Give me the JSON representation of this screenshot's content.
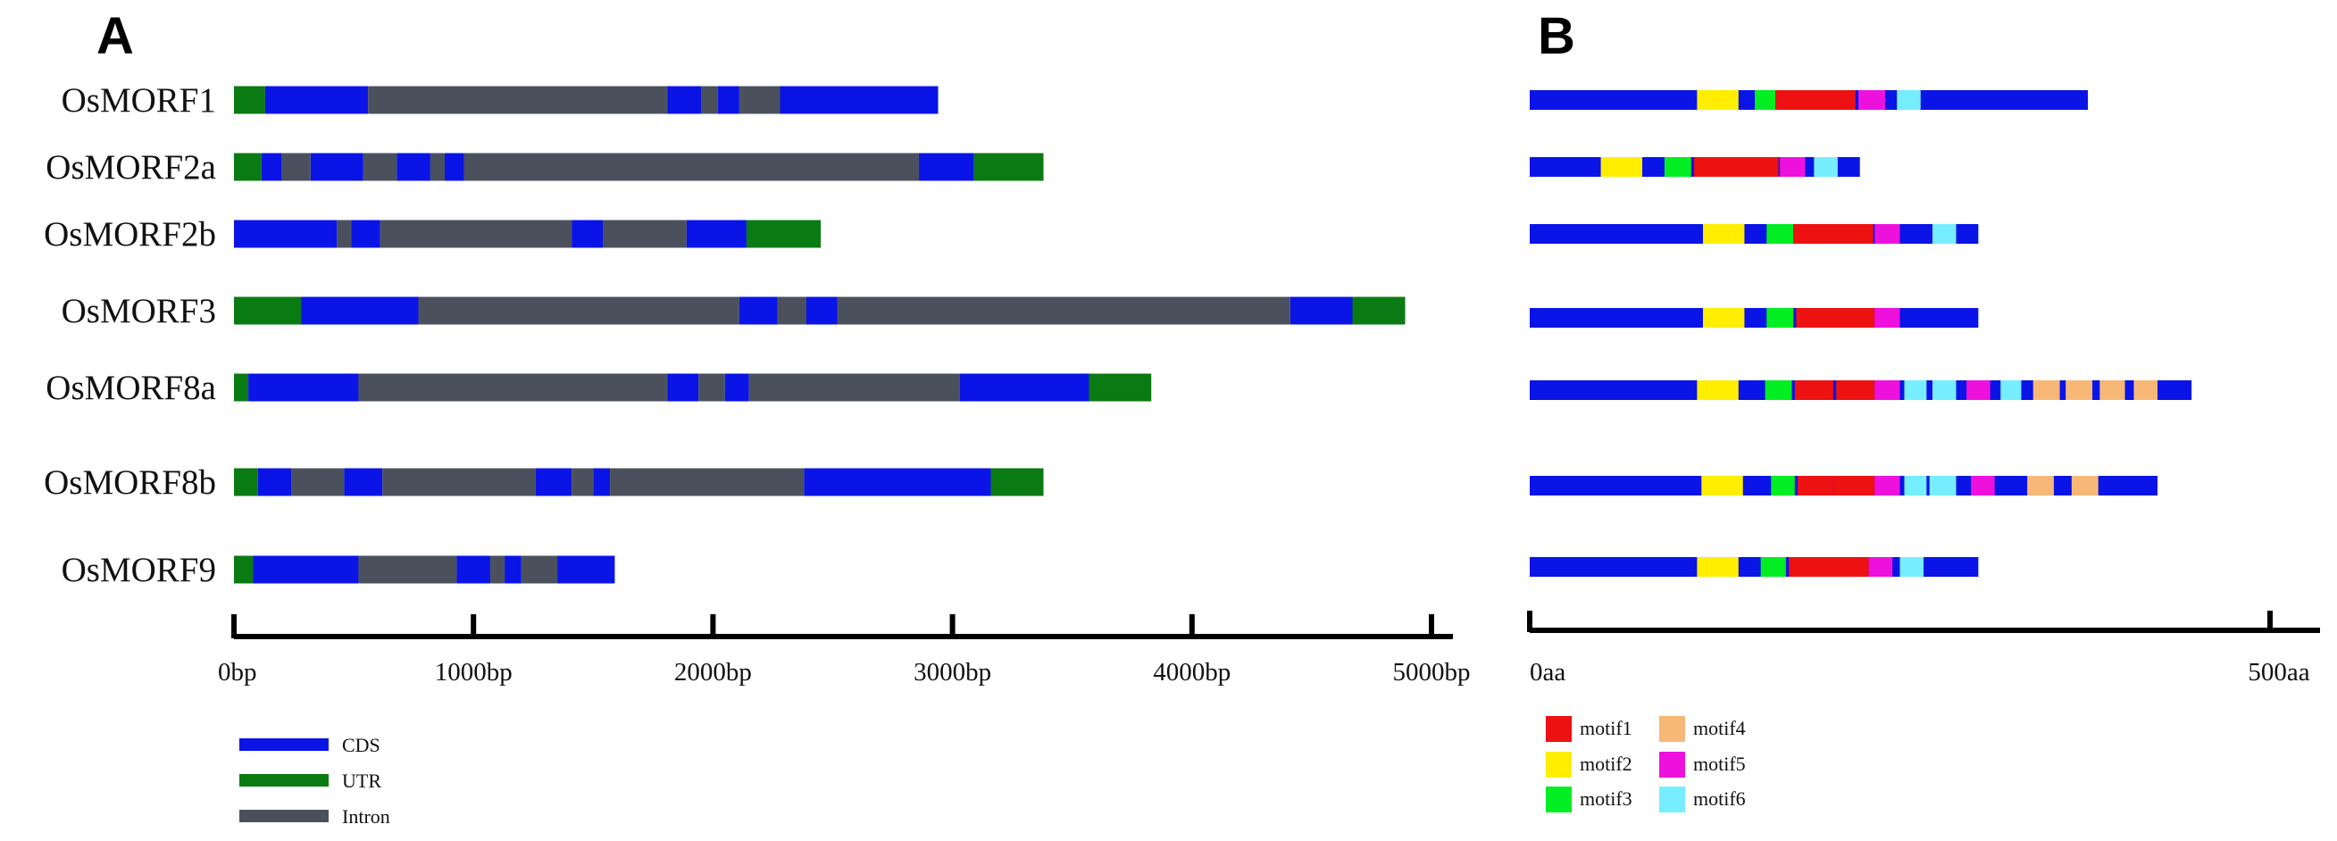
{
  "chart_data": [
    {
      "type": "gene_structure",
      "panel": "A",
      "unit": "bp",
      "xlim": [
        0,
        5000
      ],
      "ticks": [
        0,
        1000,
        2000,
        3000,
        4000,
        5000
      ],
      "tick_labels": [
        "0bp",
        "1000bp",
        "2000bp",
        "3000bp",
        "4000bp",
        "5000bp"
      ],
      "genes": [
        {
          "name": "OsMORF1",
          "segments": [
            {
              "type": "UTR",
              "start": 0,
              "end": 130
            },
            {
              "type": "CDS",
              "start": 130,
              "end": 560
            },
            {
              "type": "Intron",
              "start": 560,
              "end": 1810
            },
            {
              "type": "CDS",
              "start": 1810,
              "end": 1950
            },
            {
              "type": "Intron",
              "start": 1950,
              "end": 2020
            },
            {
              "type": "CDS",
              "start": 2020,
              "end": 2110
            },
            {
              "type": "Intron",
              "start": 2110,
              "end": 2280
            },
            {
              "type": "CDS",
              "start": 2280,
              "end": 2940
            }
          ]
        },
        {
          "name": "OsMORF2a",
          "segments": [
            {
              "type": "UTR",
              "start": 0,
              "end": 115
            },
            {
              "type": "CDS",
              "start": 115,
              "end": 200
            },
            {
              "type": "Intron",
              "start": 200,
              "end": 320
            },
            {
              "type": "CDS",
              "start": 320,
              "end": 540
            },
            {
              "type": "Intron",
              "start": 540,
              "end": 680
            },
            {
              "type": "CDS",
              "start": 680,
              "end": 820
            },
            {
              "type": "Intron",
              "start": 820,
              "end": 880
            },
            {
              "type": "CDS",
              "start": 880,
              "end": 960
            },
            {
              "type": "Intron",
              "start": 960,
              "end": 2860
            },
            {
              "type": "CDS",
              "start": 2860,
              "end": 3090
            },
            {
              "type": "UTR",
              "start": 3090,
              "end": 3380
            }
          ]
        },
        {
          "name": "OsMORF2b",
          "segments": [
            {
              "type": "CDS",
              "start": 0,
              "end": 430
            },
            {
              "type": "Intron",
              "start": 430,
              "end": 490
            },
            {
              "type": "CDS",
              "start": 490,
              "end": 610
            },
            {
              "type": "Intron",
              "start": 610,
              "end": 1410
            },
            {
              "type": "CDS",
              "start": 1410,
              "end": 1540
            },
            {
              "type": "Intron",
              "start": 1540,
              "end": 1890
            },
            {
              "type": "CDS",
              "start": 1890,
              "end": 2140
            },
            {
              "type": "UTR",
              "start": 2140,
              "end": 2450
            }
          ]
        },
        {
          "name": "OsMORF3",
          "segments": [
            {
              "type": "UTR",
              "start": 0,
              "end": 280
            },
            {
              "type": "CDS",
              "start": 280,
              "end": 770
            },
            {
              "type": "Intron",
              "start": 770,
              "end": 2110
            },
            {
              "type": "CDS",
              "start": 2110,
              "end": 2270
            },
            {
              "type": "Intron",
              "start": 2270,
              "end": 2390
            },
            {
              "type": "CDS",
              "start": 2390,
              "end": 2520
            },
            {
              "type": "Intron",
              "start": 2520,
              "end": 4410
            },
            {
              "type": "CDS",
              "start": 4410,
              "end": 4670
            },
            {
              "type": "UTR",
              "start": 4670,
              "end": 4890
            }
          ]
        },
        {
          "name": "OsMORF8a",
          "segments": [
            {
              "type": "UTR",
              "start": 0,
              "end": 60
            },
            {
              "type": "CDS",
              "start": 60,
              "end": 520
            },
            {
              "type": "Intron",
              "start": 520,
              "end": 1810
            },
            {
              "type": "CDS",
              "start": 1810,
              "end": 1940
            },
            {
              "type": "Intron",
              "start": 1940,
              "end": 2050
            },
            {
              "type": "CDS",
              "start": 2050,
              "end": 2150
            },
            {
              "type": "Intron",
              "start": 2150,
              "end": 3030
            },
            {
              "type": "CDS",
              "start": 3030,
              "end": 3570
            },
            {
              "type": "UTR",
              "start": 3570,
              "end": 3830
            }
          ]
        },
        {
          "name": "OsMORF8b",
          "segments": [
            {
              "type": "UTR",
              "start": 0,
              "end": 100
            },
            {
              "type": "CDS",
              "start": 100,
              "end": 240
            },
            {
              "type": "Intron",
              "start": 240,
              "end": 460
            },
            {
              "type": "CDS",
              "start": 460,
              "end": 620
            },
            {
              "type": "Intron",
              "start": 620,
              "end": 1260
            },
            {
              "type": "CDS",
              "start": 1260,
              "end": 1410
            },
            {
              "type": "Intron",
              "start": 1410,
              "end": 1500
            },
            {
              "type": "CDS",
              "start": 1500,
              "end": 1570
            },
            {
              "type": "Intron",
              "start": 1570,
              "end": 2380
            },
            {
              "type": "CDS",
              "start": 2380,
              "end": 3160
            },
            {
              "type": "UTR",
              "start": 3160,
              "end": 3380
            }
          ]
        },
        {
          "name": "OsMORF9",
          "segments": [
            {
              "type": "UTR",
              "start": 0,
              "end": 80
            },
            {
              "type": "CDS",
              "start": 80,
              "end": 520
            },
            {
              "type": "Intron",
              "start": 520,
              "end": 930
            },
            {
              "type": "CDS",
              "start": 930,
              "end": 1070
            },
            {
              "type": "Intron",
              "start": 1070,
              "end": 1130
            },
            {
              "type": "CDS",
              "start": 1130,
              "end": 1200
            },
            {
              "type": "Intron",
              "start": 1200,
              "end": 1350
            },
            {
              "type": "CDS",
              "start": 1350,
              "end": 1590
            }
          ]
        }
      ],
      "legend": [
        {
          "type": "CDS",
          "label": "CDS",
          "color": "#0a14e6"
        },
        {
          "type": "UTR",
          "label": "UTR",
          "color": "#0a7a12"
        },
        {
          "type": "Intron",
          "label": "Intron",
          "color": "#4a515d"
        }
      ]
    },
    {
      "type": "motif_structure",
      "panel": "B",
      "unit": "aa",
      "xlim": [
        0,
        500
      ],
      "ticks": [
        0,
        500
      ],
      "tick_labels": [
        "0aa",
        "500aa"
      ],
      "proteins": [
        {
          "name": "OsMORF1",
          "length": 377,
          "motifs": [
            {
              "motif": "motif2",
              "start": 113,
              "end": 141
            },
            {
              "motif": "motif3",
              "start": 152,
              "end": 166
            },
            {
              "motif": "motif1",
              "start": 166,
              "end": 220
            },
            {
              "motif": "motif5",
              "start": 222,
              "end": 240
            },
            {
              "motif": "motif6",
              "start": 248,
              "end": 264
            }
          ]
        },
        {
          "name": "OsMORF2a",
          "length": 223,
          "motifs": [
            {
              "motif": "motif2",
              "start": 48,
              "end": 76
            },
            {
              "motif": "motif3",
              "start": 91,
              "end": 109
            },
            {
              "motif": "motif1",
              "start": 111,
              "end": 168
            },
            {
              "motif": "motif5",
              "start": 169,
              "end": 186
            },
            {
              "motif": "motif6",
              "start": 192,
              "end": 208
            }
          ]
        },
        {
          "name": "OsMORF2b",
          "length": 303,
          "motifs": [
            {
              "motif": "motif2",
              "start": 117,
              "end": 145
            },
            {
              "motif": "motif3",
              "start": 160,
              "end": 178
            },
            {
              "motif": "motif1",
              "start": 178,
              "end": 232
            },
            {
              "motif": "motif5",
              "start": 233,
              "end": 250
            },
            {
              "motif": "motif6",
              "start": 272,
              "end": 288
            }
          ]
        },
        {
          "name": "OsMORF3",
          "length": 303,
          "motifs": [
            {
              "motif": "motif2",
              "start": 117,
              "end": 145
            },
            {
              "motif": "motif3",
              "start": 160,
              "end": 178
            },
            {
              "motif": "motif1",
              "start": 180,
              "end": 233
            },
            {
              "motif": "motif5",
              "start": 233,
              "end": 250
            }
          ]
        },
        {
          "name": "OsMORF8a",
          "length": 447,
          "motifs": [
            {
              "motif": "motif2",
              "start": 113,
              "end": 141
            },
            {
              "motif": "motif3",
              "start": 159,
              "end": 177
            },
            {
              "motif": "motif1",
              "start": 179,
              "end": 205
            },
            {
              "motif": "motif1",
              "start": 207,
              "end": 233
            },
            {
              "motif": "motif5",
              "start": 233,
              "end": 250
            },
            {
              "motif": "motif6",
              "start": 253,
              "end": 268
            },
            {
              "motif": "motif6",
              "start": 272,
              "end": 288
            },
            {
              "motif": "motif5",
              "start": 295,
              "end": 311
            },
            {
              "motif": "motif6",
              "start": 318,
              "end": 332
            },
            {
              "motif": "motif4",
              "start": 340,
              "end": 358
            },
            {
              "motif": "motif4",
              "start": 362,
              "end": 380
            },
            {
              "motif": "motif4",
              "start": 385,
              "end": 402
            },
            {
              "motif": "motif4",
              "start": 408,
              "end": 424
            }
          ]
        },
        {
          "name": "OsMORF8b",
          "length": 424,
          "motifs": [
            {
              "motif": "motif2",
              "start": 116,
              "end": 144
            },
            {
              "motif": "motif3",
              "start": 163,
              "end": 179
            },
            {
              "motif": "motif1",
              "start": 181,
              "end": 205
            },
            {
              "motif": "motif1",
              "start": 205,
              "end": 233
            },
            {
              "motif": "motif5",
              "start": 233,
              "end": 250
            },
            {
              "motif": "motif6",
              "start": 253,
              "end": 268
            },
            {
              "motif": "motif6",
              "start": 270,
              "end": 288
            },
            {
              "motif": "motif5",
              "start": 298,
              "end": 314
            },
            {
              "motif": "motif4",
              "start": 336,
              "end": 354
            },
            {
              "motif": "motif4",
              "start": 366,
              "end": 384
            }
          ]
        },
        {
          "name": "OsMORF9",
          "length": 303,
          "motifs": [
            {
              "motif": "motif2",
              "start": 113,
              "end": 141
            },
            {
              "motif": "motif3",
              "start": 156,
              "end": 173
            },
            {
              "motif": "motif1",
              "start": 175,
              "end": 229
            },
            {
              "motif": "motif5",
              "start": 229,
              "end": 245
            },
            {
              "motif": "motif6",
              "start": 250,
              "end": 266
            }
          ]
        }
      ],
      "protein_color": "#0a14e6",
      "legend": [
        {
          "motif": "motif1",
          "label": "motif1",
          "color": "#ee1111"
        },
        {
          "motif": "motif2",
          "label": "motif2",
          "color": "#ffee00"
        },
        {
          "motif": "motif3",
          "label": "motif3",
          "color": "#00ee22"
        },
        {
          "motif": "motif4",
          "label": "motif4",
          "color": "#f7b877"
        },
        {
          "motif": "motif5",
          "label": "motif5",
          "color": "#ee11dd"
        },
        {
          "motif": "motif6",
          "label": "motif6",
          "color": "#77eeff"
        }
      ]
    }
  ],
  "panels": {
    "a_label": "A",
    "b_label": "B"
  }
}
